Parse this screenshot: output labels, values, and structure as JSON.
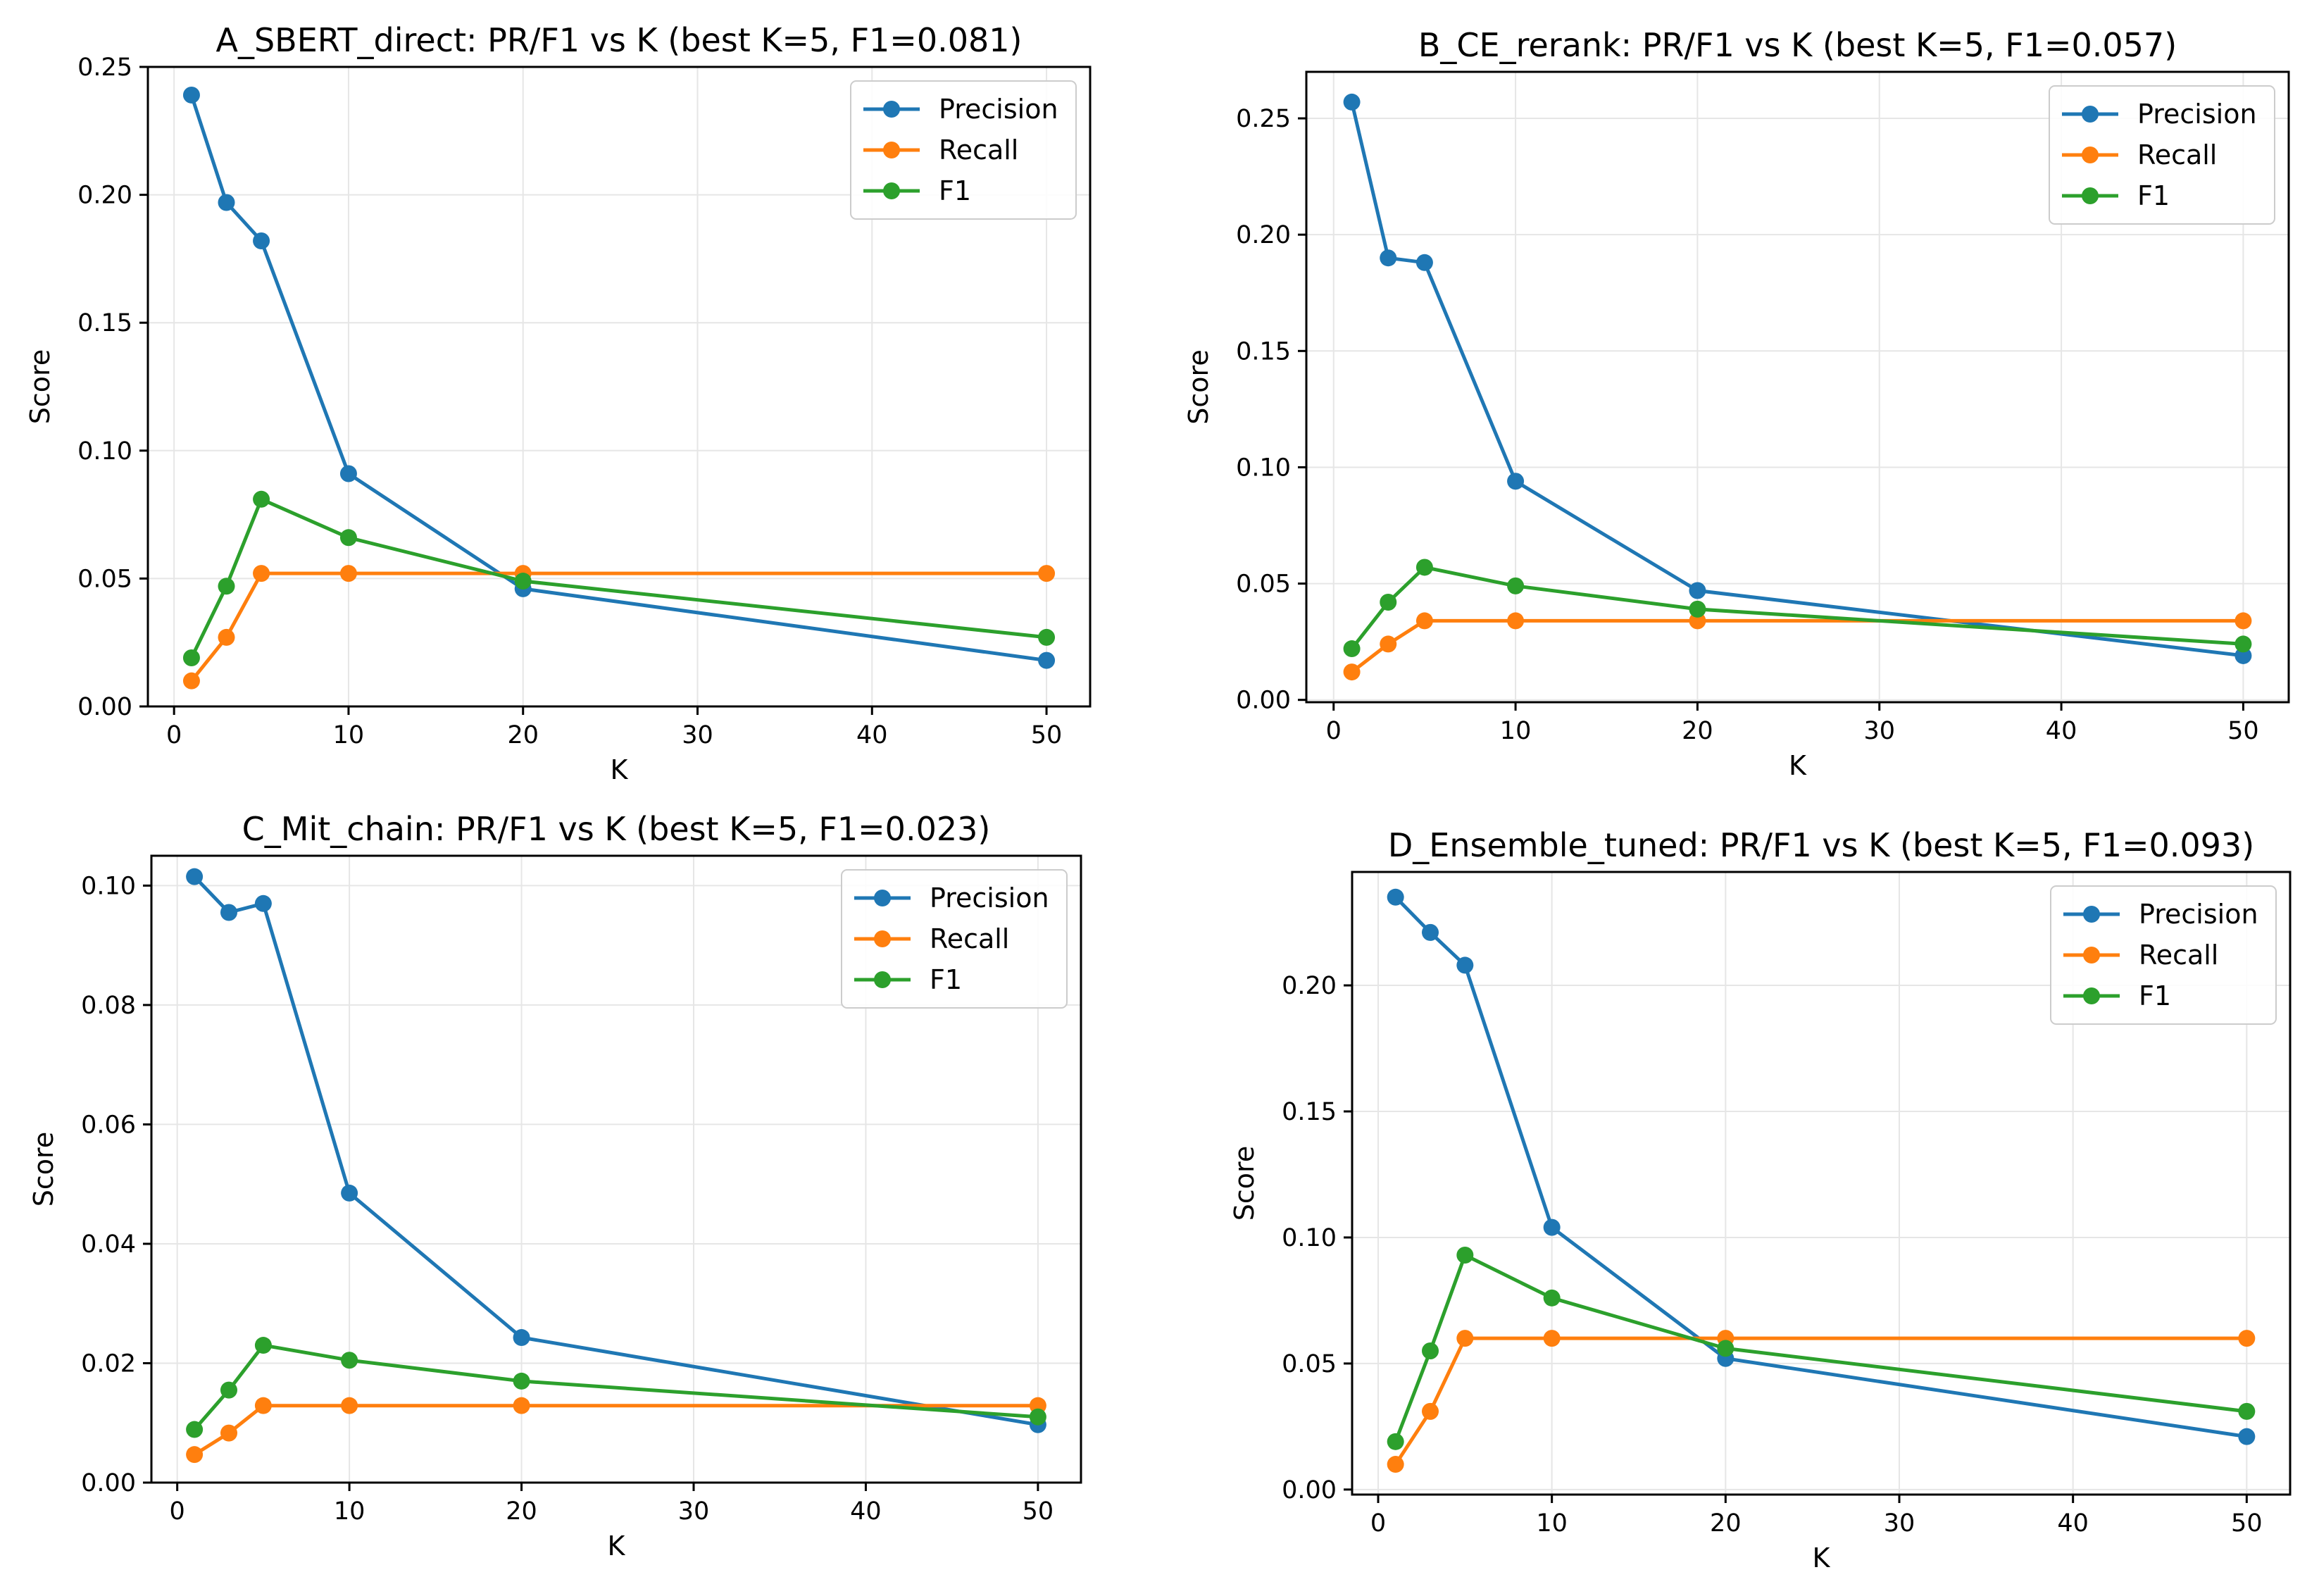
{
  "chart_data": [
    {
      "type": "line",
      "title": "A_SBERT_direct: PR/F1 vs K (best K=5, F1=0.081)",
      "xlabel": "K",
      "ylabel": "Score",
      "x": [
        1,
        3,
        5,
        10,
        20,
        50
      ],
      "xlim": [
        -1.5,
        52.5
      ],
      "ylim": [
        0,
        0.25
      ],
      "xticks": [
        0,
        10,
        20,
        30,
        40,
        50
      ],
      "xtick_labels": [
        "0",
        "10",
        "20",
        "30",
        "40",
        "50"
      ],
      "yticks": [
        0,
        0.05,
        0.1,
        0.15,
        0.2,
        0.25
      ],
      "ytick_labels": [
        "0.00",
        "0.05",
        "0.10",
        "0.15",
        "0.20",
        "0.25"
      ],
      "grid": true,
      "legend_position": "top-right",
      "series": [
        {
          "name": "Precision",
          "color": "#1f77b4",
          "values": [
            0.239,
            0.197,
            0.182,
            0.091,
            0.046,
            0.018
          ]
        },
        {
          "name": "Recall",
          "color": "#ff7f0e",
          "values": [
            0.01,
            0.027,
            0.052,
            0.052,
            0.052,
            0.052
          ]
        },
        {
          "name": "F1",
          "color": "#2ca02c",
          "values": [
            0.019,
            0.047,
            0.081,
            0.066,
            0.049,
            0.027
          ]
        }
      ]
    },
    {
      "type": "line",
      "title": "B_CE_rerank: PR/F1 vs K (best K=5, F1=0.057)",
      "xlabel": "K",
      "ylabel": "Score",
      "x": [
        1,
        3,
        5,
        10,
        20,
        50
      ],
      "xlim": [
        -1.5,
        52.5
      ],
      "ylim": [
        -0.001,
        0.27
      ],
      "xticks": [
        0,
        10,
        20,
        30,
        40,
        50
      ],
      "xtick_labels": [
        "0",
        "10",
        "20",
        "30",
        "40",
        "50"
      ],
      "yticks": [
        0,
        0.05,
        0.1,
        0.15,
        0.2,
        0.25
      ],
      "ytick_labels": [
        "0.00",
        "0.05",
        "0.10",
        "0.15",
        "0.20",
        "0.25"
      ],
      "grid": true,
      "legend_position": "top-right",
      "series": [
        {
          "name": "Precision",
          "color": "#1f77b4",
          "values": [
            0.257,
            0.19,
            0.188,
            0.094,
            0.047,
            0.019
          ]
        },
        {
          "name": "Recall",
          "color": "#ff7f0e",
          "values": [
            0.012,
            0.024,
            0.034,
            0.034,
            0.034,
            0.034
          ]
        },
        {
          "name": "F1",
          "color": "#2ca02c",
          "values": [
            0.022,
            0.042,
            0.057,
            0.049,
            0.039,
            0.024
          ]
        }
      ]
    },
    {
      "type": "line",
      "title": "C_Mit_chain: PR/F1 vs K (best K=5, F1=0.023)",
      "xlabel": "K",
      "ylabel": "Score",
      "x": [
        1,
        3,
        5,
        10,
        20,
        50
      ],
      "xlim": [
        -1.5,
        52.5
      ],
      "ylim": [
        0,
        0.105
      ],
      "xticks": [
        0,
        10,
        20,
        30,
        40,
        50
      ],
      "xtick_labels": [
        "0",
        "10",
        "20",
        "30",
        "40",
        "50"
      ],
      "yticks": [
        0,
        0.02,
        0.04,
        0.06,
        0.08,
        0.1
      ],
      "ytick_labels": [
        "0.00",
        "0.02",
        "0.04",
        "0.06",
        "0.08",
        "0.10"
      ],
      "grid": true,
      "legend_position": "top-right",
      "series": [
        {
          "name": "Precision",
          "color": "#1f77b4",
          "values": [
            0.1015,
            0.0955,
            0.097,
            0.0485,
            0.0243,
            0.0097
          ]
        },
        {
          "name": "Recall",
          "color": "#ff7f0e",
          "values": [
            0.0047,
            0.0083,
            0.0129,
            0.0129,
            0.0129,
            0.0129
          ]
        },
        {
          "name": "F1",
          "color": "#2ca02c",
          "values": [
            0.0089,
            0.0155,
            0.023,
            0.0205,
            0.017,
            0.011
          ]
        }
      ]
    },
    {
      "type": "line",
      "title": "D_Ensemble_tuned: PR/F1 vs K (best K=5, F1=0.093)",
      "xlabel": "K",
      "ylabel": "Score",
      "x": [
        1,
        3,
        5,
        10,
        20,
        50
      ],
      "xlim": [
        -1.5,
        52.5
      ],
      "ylim": [
        -0.002,
        0.245
      ],
      "xticks": [
        0,
        10,
        20,
        30,
        40,
        50
      ],
      "xtick_labels": [
        "0",
        "10",
        "20",
        "30",
        "40",
        "50"
      ],
      "yticks": [
        0,
        0.05,
        0.1,
        0.15,
        0.2
      ],
      "ytick_labels": [
        "0.00",
        "0.05",
        "0.10",
        "0.15",
        "0.20"
      ],
      "grid": true,
      "legend_position": "top-right",
      "series": [
        {
          "name": "Precision",
          "color": "#1f77b4",
          "values": [
            0.235,
            0.221,
            0.208,
            0.104,
            0.052,
            0.021
          ]
        },
        {
          "name": "Recall",
          "color": "#ff7f0e",
          "values": [
            0.01,
            0.031,
            0.06,
            0.06,
            0.06,
            0.06
          ]
        },
        {
          "name": "F1",
          "color": "#2ca02c",
          "values": [
            0.019,
            0.055,
            0.093,
            0.076,
            0.056,
            0.031
          ]
        }
      ]
    }
  ]
}
